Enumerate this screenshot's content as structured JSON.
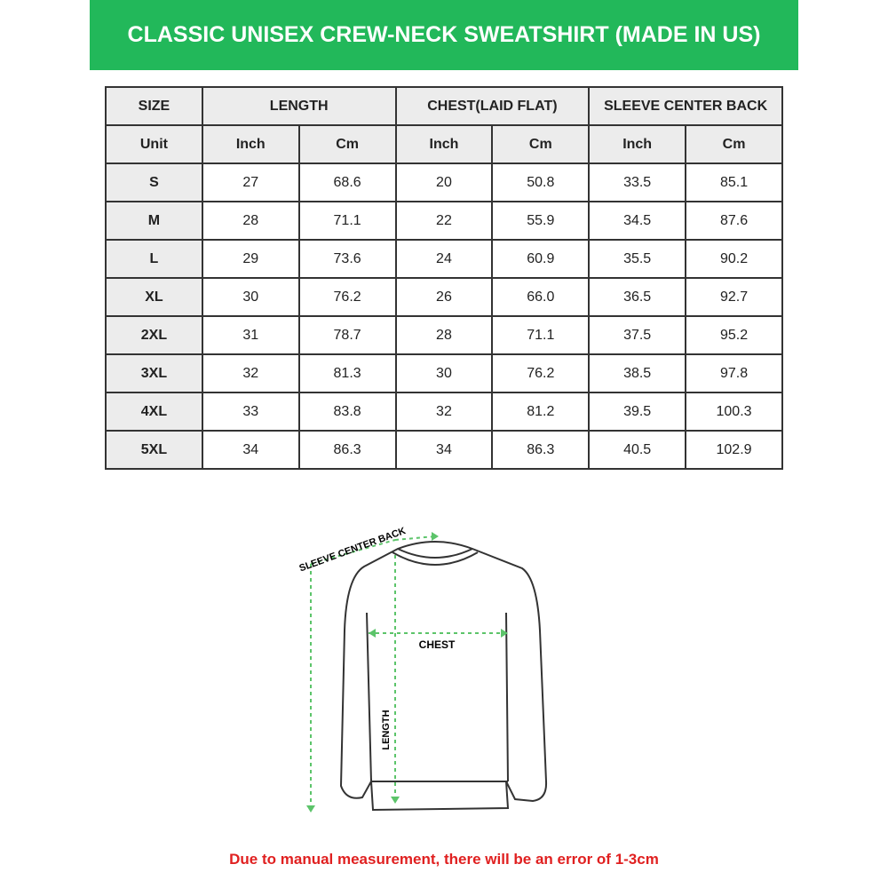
{
  "header": {
    "title": "CLASSIC UNISEX CREW-NECK SWEATSHIRT (MADE IN US)"
  },
  "table": {
    "columns": [
      "SIZE",
      "LENGTH",
      "CHEST(LAID FLAT)",
      "SLEEVE CENTER BACK"
    ],
    "units": [
      "Unit",
      "Inch",
      "Cm",
      "Inch",
      "Cm",
      "Inch",
      "Cm"
    ],
    "rows": [
      [
        "S",
        "27",
        "68.6",
        "20",
        "50.8",
        "33.5",
        "85.1"
      ],
      [
        "M",
        "28",
        "71.1",
        "22",
        "55.9",
        "34.5",
        "87.6"
      ],
      [
        "L",
        "29",
        "73.6",
        "24",
        "60.9",
        "35.5",
        "90.2"
      ],
      [
        "XL",
        "30",
        "76.2",
        "26",
        "66.0",
        "36.5",
        "92.7"
      ],
      [
        "2XL",
        "31",
        "78.7",
        "28",
        "71.1",
        "37.5",
        "95.2"
      ],
      [
        "3XL",
        "32",
        "81.3",
        "30",
        "76.2",
        "38.5",
        "97.8"
      ],
      [
        "4XL",
        "33",
        "83.8",
        "32",
        "81.2",
        "39.5",
        "100.3"
      ],
      [
        "5XL",
        "34",
        "86.3",
        "34",
        "86.3",
        "40.5",
        "102.9"
      ]
    ]
  },
  "diagram": {
    "sleeve_label": "SLEEVE CENTER BACK",
    "chest_label": "CHEST",
    "length_label": "LENGTH"
  },
  "footer": {
    "note": "Due to manual measurement, there will be an error of 1-3cm"
  }
}
